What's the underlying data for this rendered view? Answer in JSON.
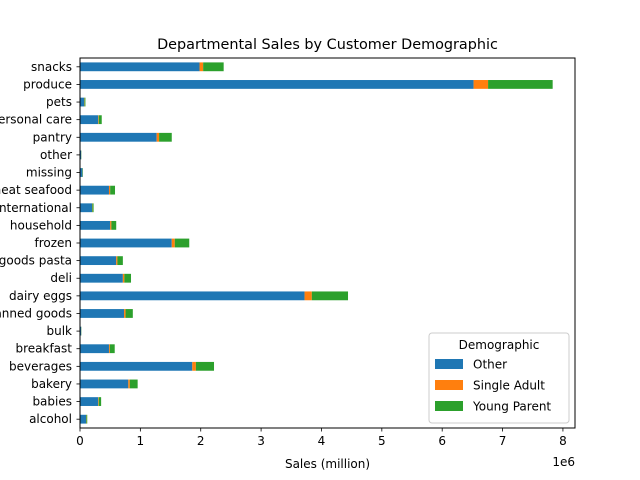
{
  "chart_data": {
    "type": "bar",
    "orientation": "horizontal",
    "stacked": true,
    "title": "Departmental Sales by Customer Demographic",
    "xlabel": "Sales (million)",
    "ylabel": "",
    "x_offset_label": "1e6",
    "xlim": [
      0,
      8200000
    ],
    "xticks": [
      0,
      1000000,
      2000000,
      3000000,
      4000000,
      5000000,
      6000000,
      7000000,
      8000000
    ],
    "xtick_labels": [
      "0",
      "1",
      "2",
      "3",
      "4",
      "5",
      "6",
      "7",
      "8"
    ],
    "categories": [
      "alcohol",
      "babies",
      "bakery",
      "beverages",
      "breakfast",
      "bulk",
      "canned goods",
      "dairy eggs",
      "deli",
      "dry goods pasta",
      "frozen",
      "household",
      "international",
      "meat seafood",
      "missing",
      "other",
      "pantry",
      "personal care",
      "pets",
      "produce",
      "snacks"
    ],
    "series": [
      {
        "name": "Other",
        "color": "#1f77b4",
        "values": [
          100000,
          300000,
          800000,
          1860000,
          480000,
          20000,
          730000,
          3720000,
          710000,
          600000,
          1520000,
          500000,
          200000,
          480000,
          40000,
          20000,
          1270000,
          300000,
          70000,
          6520000,
          1980000
        ]
      },
      {
        "name": "Single Adult",
        "color": "#ff7f0e",
        "values": [
          5000,
          10000,
          25000,
          60000,
          15000,
          1000,
          25000,
          120000,
          25000,
          20000,
          50000,
          20000,
          5000,
          20000,
          2000,
          1000,
          40000,
          10000,
          5000,
          240000,
          60000
        ]
      },
      {
        "name": "Young Parent",
        "color": "#2ca02c",
        "values": [
          15000,
          40000,
          130000,
          300000,
          80000,
          3000,
          120000,
          600000,
          110000,
          90000,
          240000,
          80000,
          20000,
          80000,
          6000,
          3000,
          210000,
          50000,
          15000,
          1070000,
          340000
        ]
      }
    ],
    "legend": {
      "title": "Demographic",
      "placement": "lower-right"
    },
    "grid": false
  }
}
